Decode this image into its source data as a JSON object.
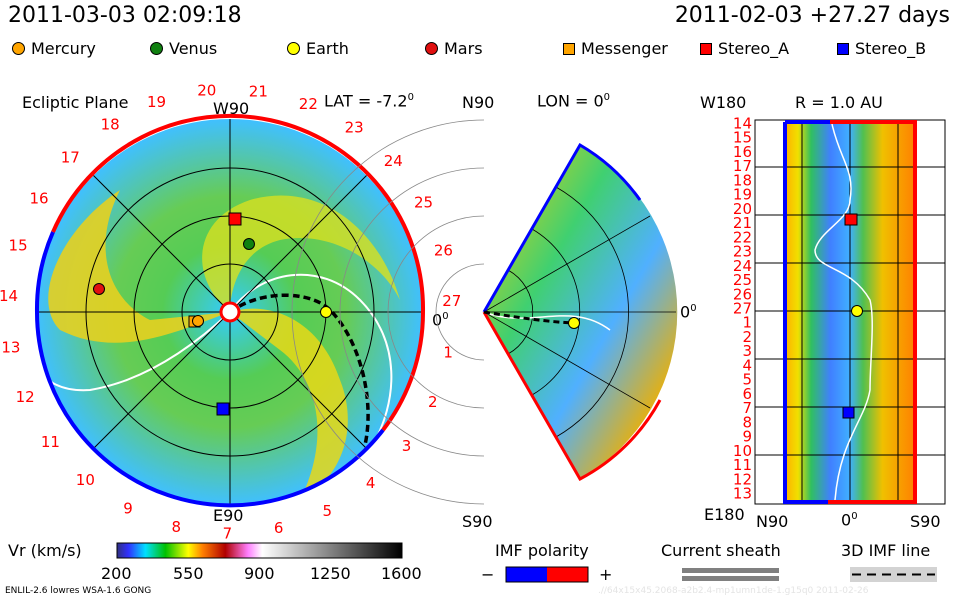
{
  "header": {
    "datetime": "2011-03-03 02:09:18",
    "reference": "2011-02-03 +27.27 days"
  },
  "legend": [
    {
      "label": "Mercury",
      "shape": "circle",
      "color": "#ffa500"
    },
    {
      "label": "Venus",
      "shape": "circle",
      "color": "#108010"
    },
    {
      "label": "Earth",
      "shape": "circle",
      "color": "#ffff00"
    },
    {
      "label": "Mars",
      "shape": "circle",
      "color": "#e01010"
    },
    {
      "label": "Messenger",
      "shape": "square",
      "color": "#ffa500"
    },
    {
      "label": "Stereo_A",
      "shape": "square",
      "color": "#ff0000"
    },
    {
      "label": "Stereo_B",
      "shape": "square",
      "color": "#0000ff"
    }
  ],
  "ecliptic": {
    "title": "Ecliptic Plane",
    "top": "W90",
    "bottom": "E90",
    "right": "0",
    "right_sup": "0",
    "lat_label": "LAT = -7.2",
    "lat_sup": "0",
    "carrington_labels": [
      "20",
      "21",
      "22",
      "23",
      "24",
      "25",
      "26",
      "27",
      "1",
      "2",
      "3",
      "4",
      "5",
      "6",
      "7",
      "8",
      "9",
      "10",
      "11",
      "12",
      "13",
      "14",
      "15",
      "16",
      "17",
      "18",
      "19"
    ]
  },
  "meridional": {
    "top": "N90",
    "bottom": "S90",
    "right": "0",
    "right_sup": "0",
    "lon_label": "LON = 0",
    "lon_sup": "0"
  },
  "radial": {
    "title": "R = 1.0 AU",
    "top": "W180",
    "bottom": "E180",
    "x_labels": [
      "N90",
      "0",
      "S90"
    ],
    "x_sup": "0",
    "y_labels": [
      "14",
      "15",
      "16",
      "17",
      "18",
      "19",
      "20",
      "21",
      "22",
      "23",
      "24",
      "25",
      "26",
      "27",
      "1",
      "2",
      "3",
      "4",
      "5",
      "6",
      "7",
      "8",
      "9",
      "10",
      "11",
      "12",
      "13"
    ]
  },
  "colorbar": {
    "label": "Vr (km/s)",
    "ticks": [
      "200",
      "550",
      "900",
      "1250",
      "1600"
    ],
    "range": [
      200,
      1600
    ]
  },
  "imf_polarity": {
    "label": "IMF polarity",
    "minus": "−",
    "plus": "+",
    "neg_color": "#0000ff",
    "pos_color": "#ff0000"
  },
  "current_sheath": {
    "label": "Current sheath"
  },
  "imf_line": {
    "label": "3D IMF line"
  },
  "footer": {
    "model": "ENLIL-2.6 lowres WSA-1.6 GONG",
    "run_id": ".//64x15x45.2068-a2b2.4-mp1umn1de-1.g15q0   2011-02-26"
  }
}
